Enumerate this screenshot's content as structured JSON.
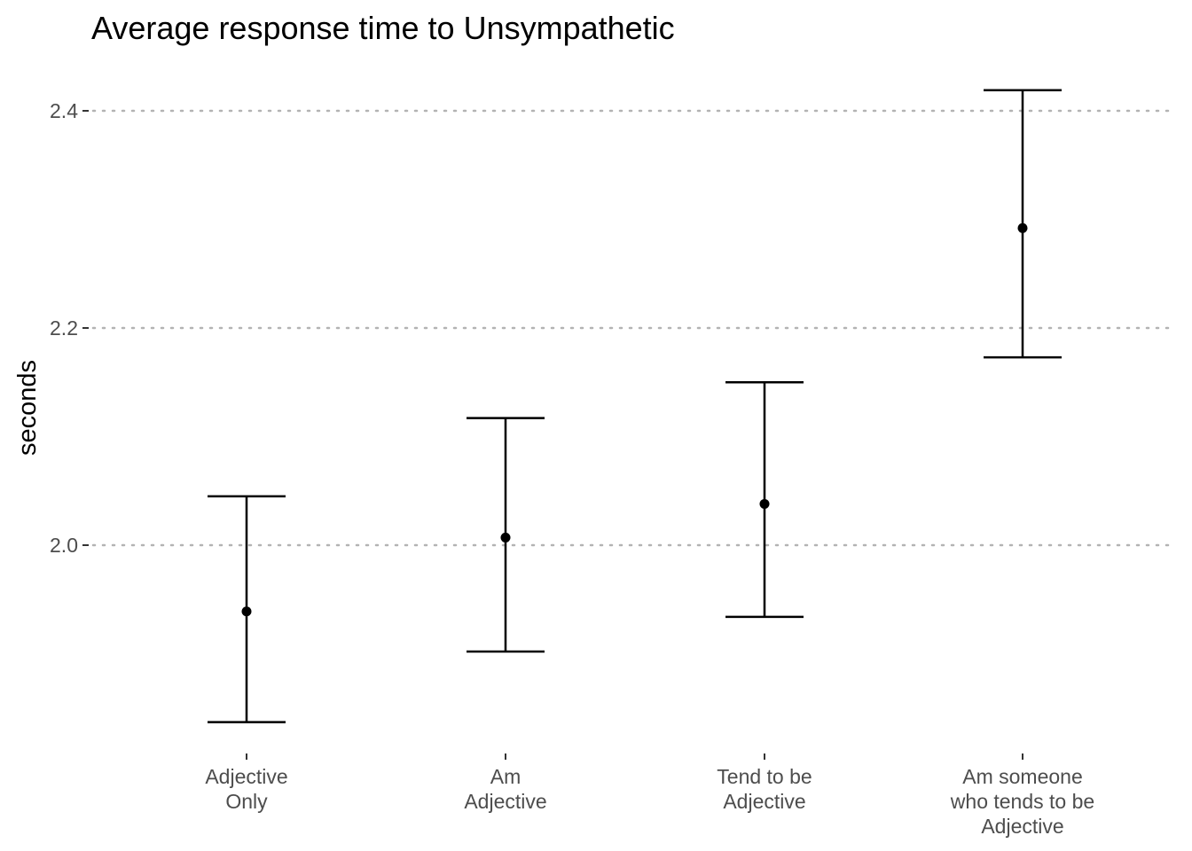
{
  "chart_data": {
    "type": "errorbar",
    "title": "Average response time to Unsympathetic",
    "xlabel": "",
    "ylabel": "seconds",
    "categories": [
      [
        "Adjective",
        "Only"
      ],
      [
        "Am",
        "Adjective"
      ],
      [
        "Tend to be",
        "Adjective"
      ],
      [
        "Am someone",
        "who tends to be",
        "Adjective"
      ]
    ],
    "points": [
      {
        "mean": 1.939,
        "lower": 1.837,
        "upper": 2.045
      },
      {
        "mean": 2.007,
        "lower": 1.902,
        "upper": 2.117
      },
      {
        "mean": 2.038,
        "lower": 1.934,
        "upper": 2.15
      },
      {
        "mean": 2.292,
        "lower": 2.173,
        "upper": 2.419
      }
    ],
    "yticks": [
      "2.0",
      "2.2",
      "2.4"
    ],
    "ylim": [
      1.81,
      2.44
    ],
    "grid": "horizontal-dotted",
    "legend": "none",
    "colors": {
      "points": "#000000",
      "grid": "#b3b3b3",
      "tick_text": "#4d4d4d"
    }
  }
}
